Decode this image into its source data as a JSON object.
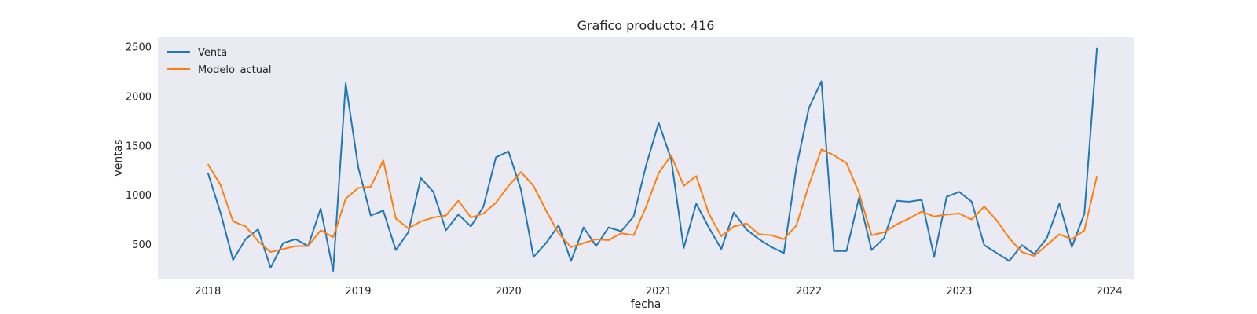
{
  "chart_data": {
    "type": "line",
    "title": "Grafico producto: 416",
    "xlabel": "fecha",
    "ylabel": "ventas",
    "x_tick_labels": [
      "2018",
      "2019",
      "2020",
      "2021",
      "2022",
      "2023",
      "2024"
    ],
    "y_tick_labels": [
      "500",
      "1000",
      "1500",
      "2000",
      "2500"
    ],
    "y_ticks": [
      500,
      1000,
      1500,
      2000,
      2500
    ],
    "ylim": [
      150,
      2600
    ],
    "xlim": [
      "2017-09",
      "2024-03"
    ],
    "grid": false,
    "legend_position": "top-left",
    "background_color": "#eaeaf2",
    "x": [
      "2018-01",
      "2018-02",
      "2018-03",
      "2018-04",
      "2018-05",
      "2018-06",
      "2018-07",
      "2018-08",
      "2018-09",
      "2018-10",
      "2018-11",
      "2018-12",
      "2019-01",
      "2019-02",
      "2019-03",
      "2019-04",
      "2019-05",
      "2019-06",
      "2019-07",
      "2019-08",
      "2019-09",
      "2019-10",
      "2019-11",
      "2019-12",
      "2020-01",
      "2020-02",
      "2020-03",
      "2020-04",
      "2020-05",
      "2020-06",
      "2020-07",
      "2020-08",
      "2020-09",
      "2020-10",
      "2020-11",
      "2020-12",
      "2021-01",
      "2021-02",
      "2021-03",
      "2021-04",
      "2021-05",
      "2021-06",
      "2021-07",
      "2021-08",
      "2021-09",
      "2021-10",
      "2021-11",
      "2021-12",
      "2022-01",
      "2022-02",
      "2022-03",
      "2022-04",
      "2022-05",
      "2022-06",
      "2022-07",
      "2022-08",
      "2022-09",
      "2022-10",
      "2022-11",
      "2022-12",
      "2023-01",
      "2023-02",
      "2023-03",
      "2023-04",
      "2023-05",
      "2023-06",
      "2023-07",
      "2023-08",
      "2023-09",
      "2023-10",
      "2023-11",
      "2023-12"
    ],
    "series": [
      {
        "name": "Venta",
        "color": "#1f77b4",
        "values": [
          1220,
          820,
          340,
          550,
          650,
          260,
          510,
          550,
          480,
          860,
          230,
          2130,
          1280,
          790,
          840,
          440,
          620,
          1170,
          1030,
          640,
          800,
          680,
          880,
          1380,
          1440,
          1050,
          370,
          510,
          690,
          330,
          670,
          480,
          670,
          630,
          780,
          1300,
          1730,
          1360,
          460,
          910,
          670,
          450,
          820,
          650,
          550,
          470,
          410,
          1280,
          1880,
          2150,
          430,
          430,
          970,
          440,
          560,
          940,
          930,
          950,
          370,
          980,
          1030,
          930,
          490,
          410,
          330,
          490,
          400,
          560,
          910,
          470,
          810,
          2490
        ]
      },
      {
        "name": "Modelo_actual",
        "color": "#ff7f0e",
        "values": [
          1310,
          1100,
          730,
          680,
          530,
          420,
          450,
          480,
          480,
          640,
          570,
          960,
          1070,
          1080,
          1350,
          760,
          660,
          730,
          770,
          790,
          940,
          770,
          810,
          920,
          1090,
          1230,
          1090,
          840,
          610,
          470,
          510,
          550,
          540,
          610,
          590,
          880,
          1220,
          1400,
          1090,
          1190,
          810,
          580,
          680,
          710,
          600,
          590,
          550,
          690,
          1100,
          1460,
          1400,
          1320,
          1020,
          590,
          620,
          700,
          760,
          830,
          780,
          800,
          810,
          750,
          880,
          740,
          560,
          420,
          380,
          490,
          600,
          550,
          640,
          1190
        ]
      }
    ]
  }
}
